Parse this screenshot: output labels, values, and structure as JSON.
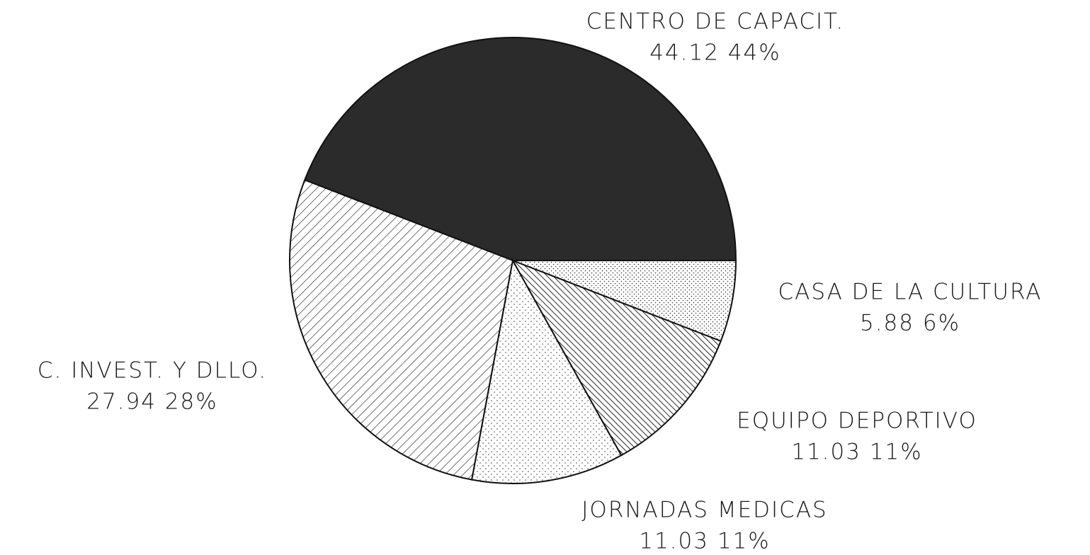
{
  "chart_data": {
    "type": "pie",
    "categories": [
      "CENTRO DE CAPACIT.",
      "C. INVEST. Y DLLO.",
      "JORNADAS MEDICAS",
      "EQUIPO DEPORTIVO",
      "CASA DE LA CULTURA"
    ],
    "values": [
      44.12,
      27.94,
      11.03,
      11.03,
      5.88
    ],
    "value_labels": [
      "44.12 44%",
      "27.94 28%",
      "11.03 11%",
      "11.03 11%",
      "5.88 6%"
    ]
  }
}
